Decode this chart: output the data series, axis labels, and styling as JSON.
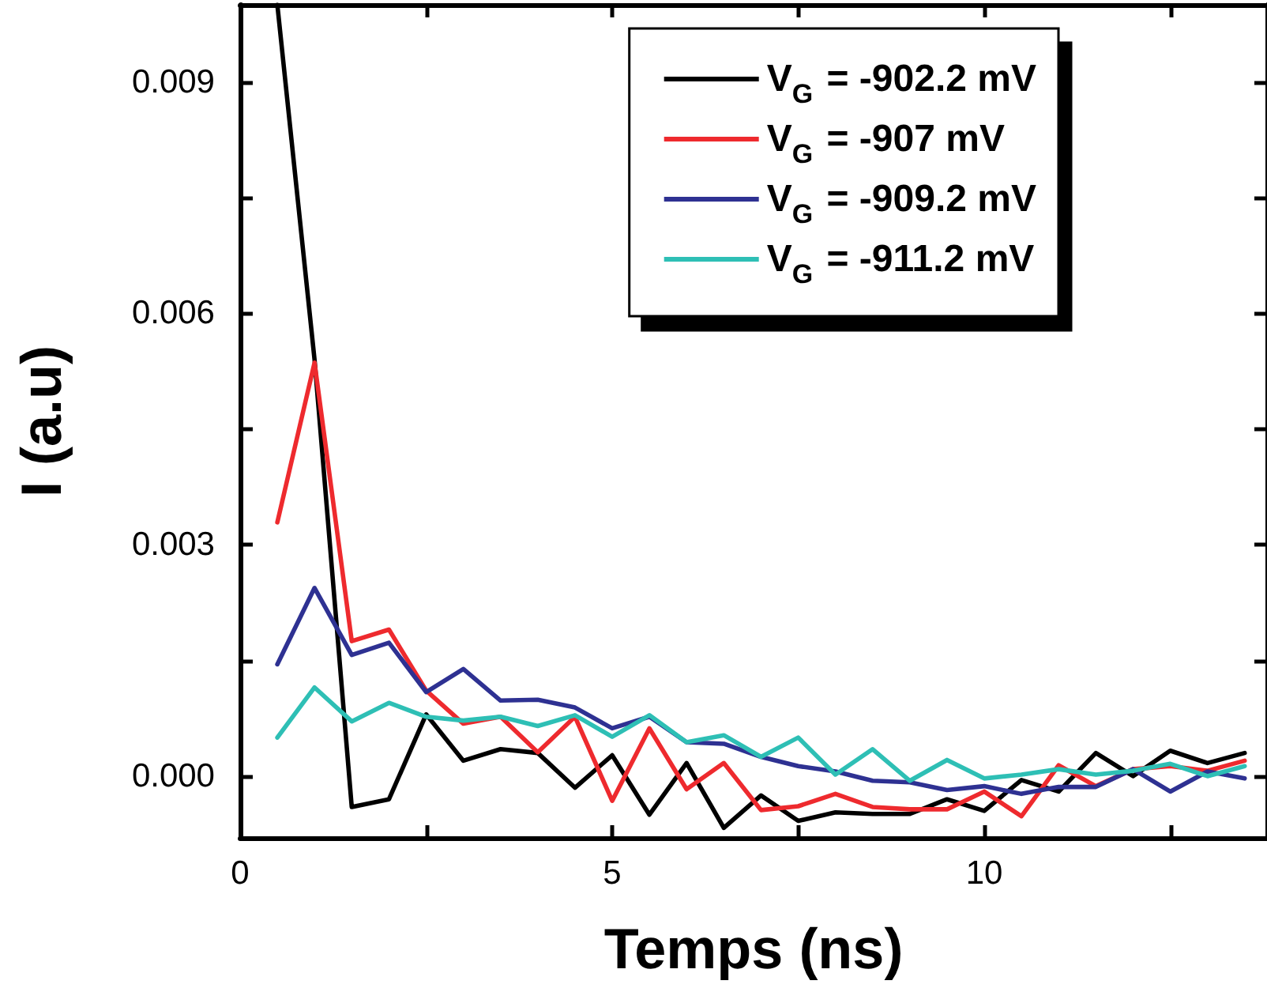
{
  "chart_data": {
    "type": "line",
    "xlabel": "Temps (ns)",
    "ylabel": "I (a.u)",
    "x": [
      0.5,
      1,
      1.5,
      2,
      2.5,
      3,
      3.5,
      4,
      4.5,
      5,
      5.5,
      6,
      6.5,
      7,
      7.5,
      8,
      8.5,
      9,
      9.5,
      10,
      10.5,
      11,
      11.5,
      12,
      12.5,
      13,
      13.5
    ],
    "series": [
      {
        "name": "V$_{G}$ = -902.2 mV",
        "color": "#000000",
        "values": [
          0.01,
          0.0054,
          -0.0004,
          -0.0003,
          0.0008,
          0.0002,
          0.00035,
          0.0003,
          -0.00015,
          0.00027,
          -0.0005,
          0.00017,
          -0.00067,
          -0.00025,
          -0.00058,
          -0.00047,
          -0.00049,
          -0.00049,
          -0.0003,
          -0.00045,
          -5e-05,
          -0.0002,
          0.0003,
          0.0,
          0.00033,
          0.00017,
          0.0003
        ]
      },
      {
        "name": "V$_{G}$ = -907 mV",
        "color": "#ee2a2e",
        "values": [
          0.00329,
          0.00536,
          0.00175,
          0.0019,
          0.00111,
          0.00068,
          0.00077,
          0.00031,
          0.00077,
          -0.00032,
          0.00062,
          -0.00017,
          0.00017,
          -0.00044,
          -0.00039,
          -0.00023,
          -0.0004,
          -0.00043,
          -0.00043,
          -0.0002,
          -0.00052,
          0.00014,
          -0.00013,
          9e-05,
          0.00013,
          7e-05,
          0.0002
        ]
      },
      {
        "name": "V$_{G}$ = -909.2 mV",
        "color": "#2e3192",
        "values": [
          0.00145,
          0.00244,
          0.00157,
          0.00173,
          0.00109,
          0.00139,
          0.00098,
          0.00099,
          0.00089,
          0.00062,
          0.00077,
          0.00044,
          0.00042,
          0.00025,
          0.00013,
          6e-05,
          -6e-05,
          -8e-05,
          -0.00018,
          -0.00013,
          -0.00023,
          -0.00014,
          -0.00014,
          9e-05,
          -0.0002,
          6e-05,
          -3e-05
        ]
      },
      {
        "name": "V$_{G}$ = -911.2 mV",
        "color": "#2ebfb5",
        "values": [
          0.0005,
          0.00115,
          0.00071,
          0.00095,
          0.00077,
          0.00072,
          0.00077,
          0.00065,
          0.00079,
          0.00051,
          0.00079,
          0.00044,
          0.00053,
          0.00025,
          0.0005,
          2e-05,
          0.00035,
          -6e-05,
          0.00021,
          -3e-05,
          2e-05,
          9e-05,
          2e-05,
          7e-05,
          0.00016,
          0.0,
          0.00013
        ]
      }
    ],
    "xlim": [
      0,
      13.8
    ],
    "ylim": [
      -0.0008,
      0.01
    ],
    "xticks": [
      0,
      {
        "value": 2.5,
        "label": null
      },
      5,
      {
        "value": 7.5,
        "label": null
      },
      10,
      {
        "value": 12.5,
        "label": null
      }
    ],
    "yticks": [
      {
        "value": 0,
        "label": "0.000"
      },
      {
        "value": 0.0015,
        "label": null
      },
      0.003,
      {
        "value": 0.0045,
        "label": null
      },
      0.006,
      {
        "value": 0.0075,
        "label": null
      },
      0.009
    ],
    "grid": false,
    "legend": "top right",
    "marker": "none",
    "line_style": "solid"
  }
}
